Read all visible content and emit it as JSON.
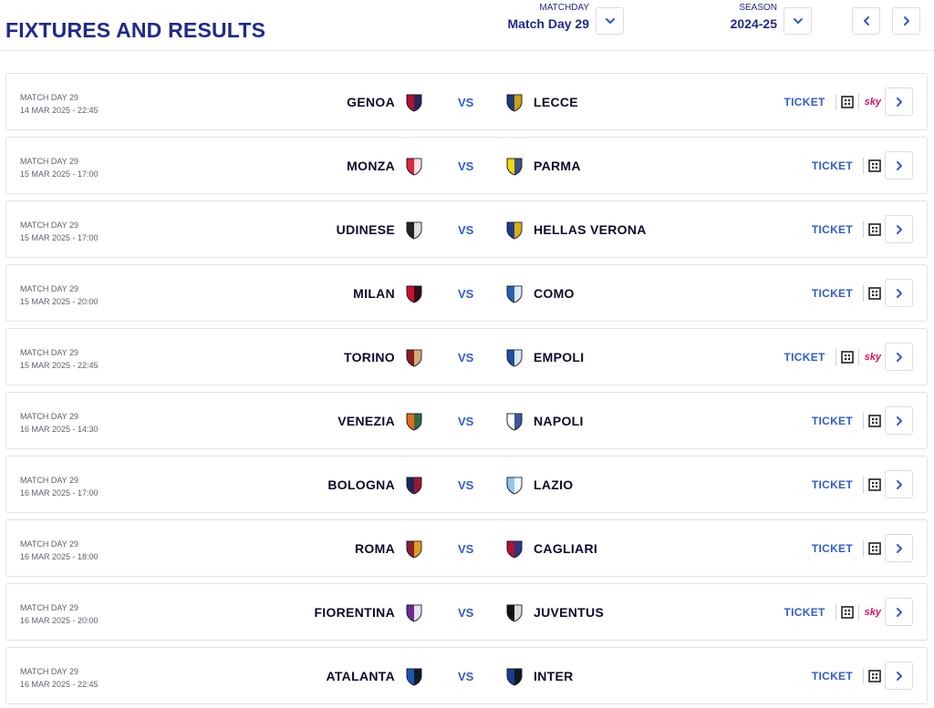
{
  "header": {
    "title": "FIXTURES AND RESULTS",
    "matchday_label": "MATCHDAY",
    "matchday_value": "Match Day 29",
    "season_label": "SEASON",
    "season_value": "2024-25"
  },
  "colors": {
    "title": "#1f2a8a",
    "accent": "#2f5ccf",
    "sky": "#d6115f"
  },
  "icons": {
    "dropdown": "chevron-down-icon",
    "prev": "chevron-left-icon",
    "next": "chevron-right-icon",
    "tv": "tv-channel-icon"
  },
  "matches": [
    {
      "info": "MATCH DAY 29",
      "date": "14 MAR 2025 - 22:45",
      "home": "GENOA",
      "home_colors": [
        "#b3122e",
        "#0e2a5c"
      ],
      "vs": "VS",
      "away": "LECCE",
      "away_colors": [
        "#1a3a7a",
        "#e6b400"
      ],
      "ticket": "TICKET",
      "sky": "sky"
    },
    {
      "info": "MATCH DAY 29",
      "date": "15 MAR 2025 - 17:00",
      "home": "MONZA",
      "home_colors": [
        "#e0243b",
        "#ffffff"
      ],
      "vs": "VS",
      "away": "PARMA",
      "away_colors": [
        "#f5d90a",
        "#1d3c8f"
      ],
      "ticket": "TICKET",
      "sky": ""
    },
    {
      "info": "MATCH DAY 29",
      "date": "15 MAR 2025 - 17:00",
      "home": "UDINESE",
      "home_colors": [
        "#222222",
        "#ffffff"
      ],
      "vs": "VS",
      "away": "HELLAS VERONA",
      "away_colors": [
        "#1c3b8c",
        "#f4c800"
      ],
      "ticket": "TICKET",
      "sky": ""
    },
    {
      "info": "MATCH DAY 29",
      "date": "15 MAR 2025 - 20:00",
      "home": "MILAN",
      "home_colors": [
        "#c8102e",
        "#111111"
      ],
      "vs": "VS",
      "away": "COMO",
      "away_colors": [
        "#2a5fb0",
        "#ffffff"
      ],
      "ticket": "TICKET",
      "sky": ""
    },
    {
      "info": "MATCH DAY 29",
      "date": "15 MAR 2025 - 22:45",
      "home": "TORINO",
      "home_colors": [
        "#8a1c1c",
        "#e3c48a"
      ],
      "vs": "VS",
      "away": "EMPOLI",
      "away_colors": [
        "#1d4fa3",
        "#ffffff"
      ],
      "ticket": "TICKET",
      "sky": "sky"
    },
    {
      "info": "MATCH DAY 29",
      "date": "16 MAR 2025 - 14:30",
      "home": "VENEZIA",
      "home_colors": [
        "#e36b1b",
        "#0f6b45"
      ],
      "vs": "VS",
      "away": "NAPOLI",
      "away_colors": [
        "#ffffff",
        "#173b8a"
      ],
      "ticket": "TICKET",
      "sky": ""
    },
    {
      "info": "MATCH DAY 29",
      "date": "16 MAR 2025 - 17:00",
      "home": "BOLOGNA",
      "home_colors": [
        "#1a2a5e",
        "#b3122e"
      ],
      "vs": "VS",
      "away": "LAZIO",
      "away_colors": [
        "#8fc7ea",
        "#ffffff"
      ],
      "ticket": "TICKET",
      "sky": ""
    },
    {
      "info": "MATCH DAY 29",
      "date": "16 MAR 2025 - 18:00",
      "home": "ROMA",
      "home_colors": [
        "#8b1e2d",
        "#f0b323"
      ],
      "vs": "VS",
      "away": "CAGLIARI",
      "away_colors": [
        "#b3122e",
        "#1d3c8f"
      ],
      "ticket": "TICKET",
      "sky": ""
    },
    {
      "info": "MATCH DAY 29",
      "date": "16 MAR 2025 - 20:00",
      "home": "FIORENTINA",
      "home_colors": [
        "#6a2c91",
        "#ffffff"
      ],
      "vs": "VS",
      "away": "JUVENTUS",
      "away_colors": [
        "#111111",
        "#ffffff"
      ],
      "ticket": "TICKET",
      "sky": "sky"
    },
    {
      "info": "MATCH DAY 29",
      "date": "16 MAR 2025 - 22:45",
      "home": "ATALANTA",
      "home_colors": [
        "#1a57b5",
        "#111111"
      ],
      "vs": "VS",
      "away": "INTER",
      "away_colors": [
        "#1a3d8f",
        "#111111"
      ],
      "ticket": "TICKET",
      "sky": ""
    }
  ]
}
